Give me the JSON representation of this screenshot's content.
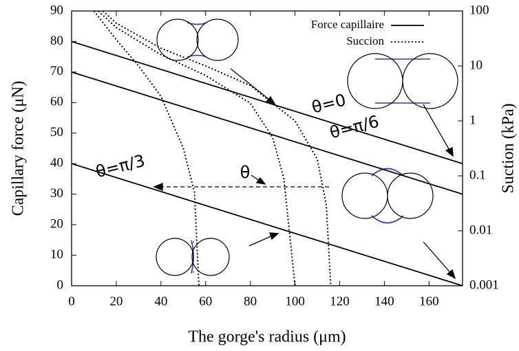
{
  "chart_data": {
    "type": "line",
    "xlabel": "The gorge's radius (μm)",
    "ylabel": "Capillary force (μN)",
    "y2label": "Suction (kPa)",
    "xlim": [
      0,
      175
    ],
    "xticks": [
      0,
      20,
      40,
      60,
      80,
      100,
      120,
      140,
      160
    ],
    "ylim": [
      0,
      90
    ],
    "yticks": [
      0,
      10,
      20,
      30,
      40,
      50,
      60,
      70,
      80,
      90
    ],
    "y2lim": [
      0.001,
      100
    ],
    "y2ticks": [
      0.001,
      0.01,
      0.1,
      1,
      10,
      100
    ],
    "y2log": true,
    "legend": [
      {
        "label": "Force capillaire",
        "dash": "solid"
      },
      {
        "label": "Succion",
        "dash": "dotted"
      }
    ],
    "series": [
      {
        "dash": "solid",
        "color": "#000000",
        "x": [
          0,
          175
        ],
        "values": [
          80,
          40
        ]
      },
      {
        "dash": "solid",
        "color": "#000000",
        "x": [
          0,
          175
        ],
        "values": [
          70,
          30
        ]
      },
      {
        "dash": "solid",
        "color": "#000000",
        "x": [
          0,
          175
        ],
        "values": [
          40,
          0
        ]
      },
      {
        "dash": "dotted",
        "color": "#000000",
        "axis": "y2",
        "x": [
          10,
          20,
          30,
          40,
          50,
          55,
          57
        ],
        "values": [
          100,
          30,
          10,
          2.8,
          0.32,
          0.05,
          0.001
        ]
      },
      {
        "dash": "dotted",
        "color": "#000000",
        "axis": "y2",
        "x": [
          12,
          20,
          40,
          60,
          80,
          90,
          95,
          100
        ],
        "values": [
          100,
          50,
          16,
          6.7,
          2.1,
          0.5,
          0.09,
          0.001
        ]
      },
      {
        "dash": "dotted",
        "color": "#000000",
        "axis": "y2",
        "x": [
          14,
          20,
          40,
          60,
          80,
          100,
          110,
          114,
          116
        ],
        "values": [
          100,
          60,
          21,
          10,
          4.4,
          1,
          0.2,
          0.03,
          0.001
        ]
      }
    ],
    "annotations": [
      "θ=0",
      "θ=π/6",
      "θ=π/3",
      "θ"
    ]
  }
}
